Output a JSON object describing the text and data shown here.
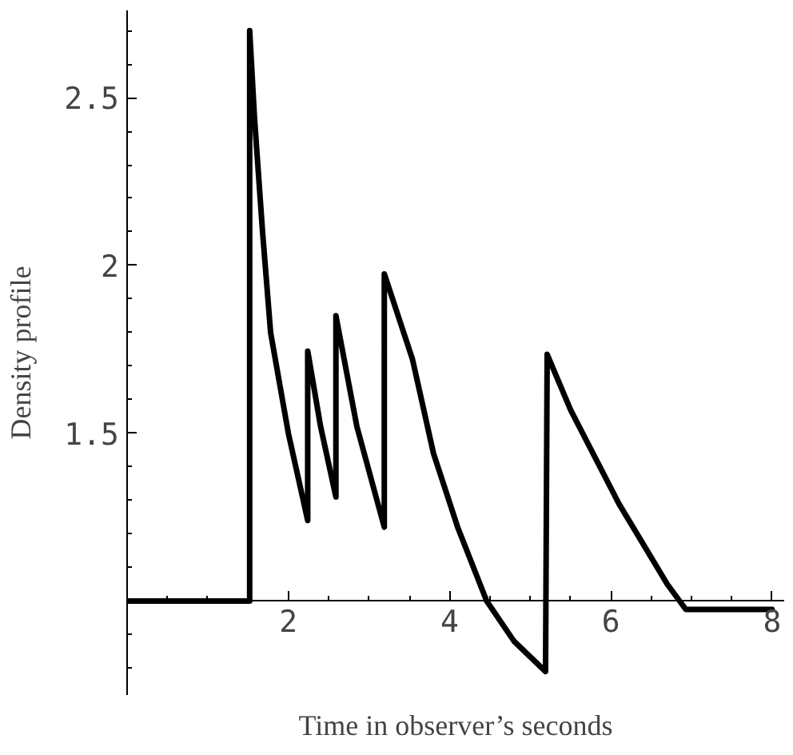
{
  "chart_data": {
    "type": "line",
    "xlabel": "Time in observer’s seconds",
    "ylabel": "Density profile",
    "x": [
      0,
      1.52,
      1.52,
      1.58,
      1.68,
      1.78,
      2.0,
      2.24,
      2.24,
      2.4,
      2.59,
      2.59,
      2.85,
      3.19,
      3.19,
      3.54,
      3.8,
      4.1,
      4.46,
      4.8,
      5.19,
      5.21,
      5.5,
      5.8,
      6.1,
      6.4,
      6.7,
      6.93,
      8.0
    ],
    "series": [
      {
        "color": "#000000",
        "values": [
          1,
          1,
          2.7,
          2.44,
          2.1,
          1.8,
          1.5,
          1.24,
          1.745,
          1.52,
          1.31,
          1.85,
          1.52,
          1.22,
          1.975,
          1.72,
          1.44,
          1.22,
          1.0,
          0.88,
          0.79,
          1.735,
          1.57,
          1.43,
          1.29,
          1.17,
          1.05,
          0.975,
          0.975
        ]
      }
    ],
    "xlim": [
      0,
      8.15
    ],
    "ylim": [
      0.72,
      2.76
    ],
    "xticks": [
      2,
      4,
      6,
      8
    ],
    "yticks": [
      1.5,
      2,
      2.5
    ],
    "marker": "none",
    "line_style": "solid"
  }
}
